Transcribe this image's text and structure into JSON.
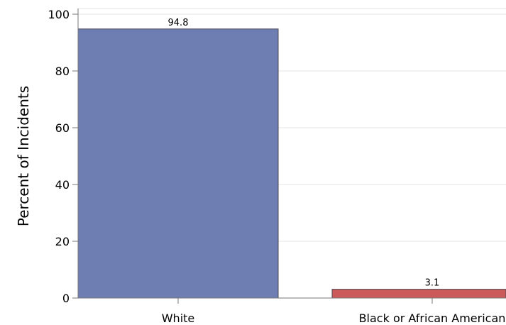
{
  "chart_data": {
    "type": "bar",
    "categories": [
      "White",
      "Black or African American"
    ],
    "values": [
      94.8,
      3.1
    ],
    "value_labels": [
      "94.8",
      "3.1"
    ],
    "ylabel": "Percent of Incidents",
    "xlabel": "",
    "ylim": [
      0,
      100
    ],
    "yticks": [
      "0",
      "20",
      "40",
      "60",
      "80",
      "100"
    ],
    "grid": "horizontal",
    "colors": {
      "bars": [
        "#6e7db2",
        "#cd5a5a"
      ],
      "bar_edge": "#4a4a5a",
      "grid": "#e6e6e6",
      "axis": "#777777"
    }
  }
}
